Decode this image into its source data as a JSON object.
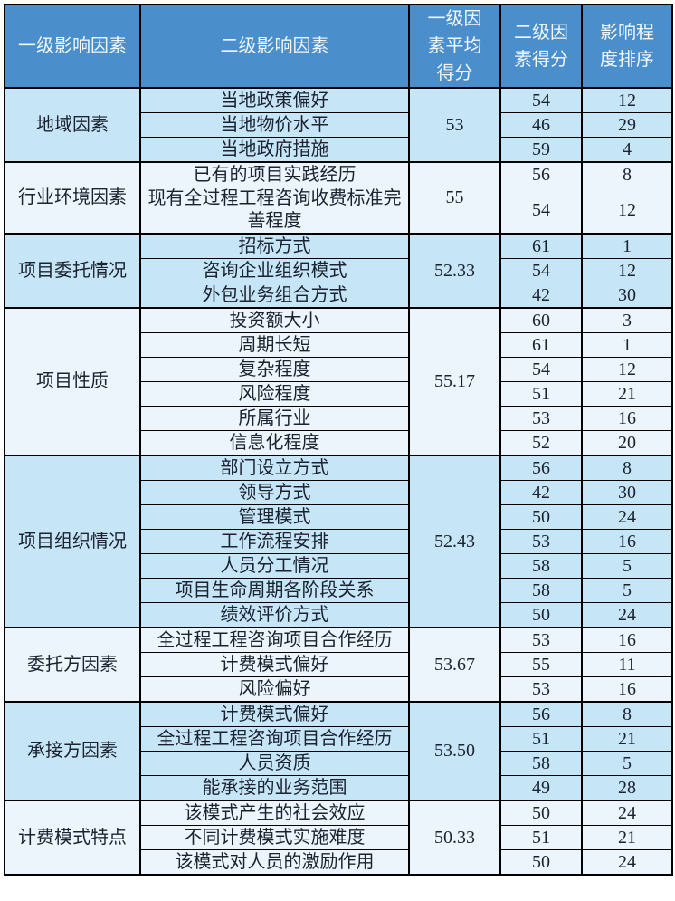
{
  "table": {
    "header": {
      "bg": "#4a8ecb",
      "text_color": "#f2f7fc",
      "columns": [
        "一级影响因素",
        "二级影响因素",
        "一级因素平均得分",
        "二级因素得分",
        "影响程度排序"
      ]
    },
    "colors": {
      "group_bg_blue": "#c6e5f6",
      "group_bg_light": "#ecf5fb",
      "border": "#000000",
      "body_text": "#1b2331"
    },
    "groups": [
      {
        "factor": "地域因素",
        "avg": "53",
        "shade": "blue",
        "rows": [
          {
            "name": "当地政策偏好",
            "score": "54",
            "rank": "12"
          },
          {
            "name": "当地物价水平",
            "score": "46",
            "rank": "29"
          },
          {
            "name": "当地政府措施",
            "score": "59",
            "rank": "4"
          }
        ]
      },
      {
        "factor": "行业环境因素",
        "avg": "55",
        "shade": "light",
        "rows": [
          {
            "name": "已有的项目实践经历",
            "score": "56",
            "rank": "8"
          },
          {
            "name": "现有全过程工程咨询收费标准完善程度",
            "score": "54",
            "rank": "12"
          }
        ]
      },
      {
        "factor": "项目委托情况",
        "avg": "52.33",
        "shade": "blue",
        "rows": [
          {
            "name": "招标方式",
            "score": "61",
            "rank": "1"
          },
          {
            "name": "咨询企业组织模式",
            "score": "54",
            "rank": "12"
          },
          {
            "name": "外包业务组合方式",
            "score": "42",
            "rank": "30"
          }
        ]
      },
      {
        "factor": "项目性质",
        "avg": "55.17",
        "shade": "light",
        "rows": [
          {
            "name": "投资额大小",
            "score": "60",
            "rank": "3"
          },
          {
            "name": "周期长短",
            "score": "61",
            "rank": "1"
          },
          {
            "name": "复杂程度",
            "score": "54",
            "rank": "12"
          },
          {
            "name": "风险程度",
            "score": "51",
            "rank": "21"
          },
          {
            "name": "所属行业",
            "score": "53",
            "rank": "16"
          },
          {
            "name": "信息化程度",
            "score": "52",
            "rank": "20"
          }
        ]
      },
      {
        "factor": "项目组织情况",
        "avg": "52.43",
        "shade": "blue",
        "rows": [
          {
            "name": "部门设立方式",
            "score": "56",
            "rank": "8"
          },
          {
            "name": "领导方式",
            "score": "42",
            "rank": "30"
          },
          {
            "name": "管理模式",
            "score": "50",
            "rank": "24"
          },
          {
            "name": "工作流程安排",
            "score": "53",
            "rank": "16"
          },
          {
            "name": "人员分工情况",
            "score": "58",
            "rank": "5"
          },
          {
            "name": "项目生命周期各阶段关系",
            "score": "58",
            "rank": "5"
          },
          {
            "name": "绩效评价方式",
            "score": "50",
            "rank": "24"
          }
        ]
      },
      {
        "factor": "委托方因素",
        "avg": "53.67",
        "shade": "light",
        "rows": [
          {
            "name": "全过程工程咨询项目合作经历",
            "score": "53",
            "rank": "16"
          },
          {
            "name": "计费模式偏好",
            "score": "55",
            "rank": "11"
          },
          {
            "name": "风险偏好",
            "score": "53",
            "rank": "16"
          }
        ]
      },
      {
        "factor": "承接方因素",
        "avg": "53.50",
        "shade": "blue",
        "rows": [
          {
            "name": "计费模式偏好",
            "score": "56",
            "rank": "8"
          },
          {
            "name": "全过程工程咨询项目合作经历",
            "score": "51",
            "rank": "21"
          },
          {
            "name": "人员资质",
            "score": "58",
            "rank": "5"
          },
          {
            "name": "能承接的业务范围",
            "score": "49",
            "rank": "28"
          }
        ]
      },
      {
        "factor": "计费模式特点",
        "avg": "50.33",
        "shade": "light",
        "rows": [
          {
            "name": "该模式产生的社会效应",
            "score": "50",
            "rank": "24"
          },
          {
            "name": "不同计费模式实施难度",
            "score": "51",
            "rank": "21"
          },
          {
            "name": "该模式对人员的激励作用",
            "score": "50",
            "rank": "24"
          }
        ]
      }
    ]
  }
}
